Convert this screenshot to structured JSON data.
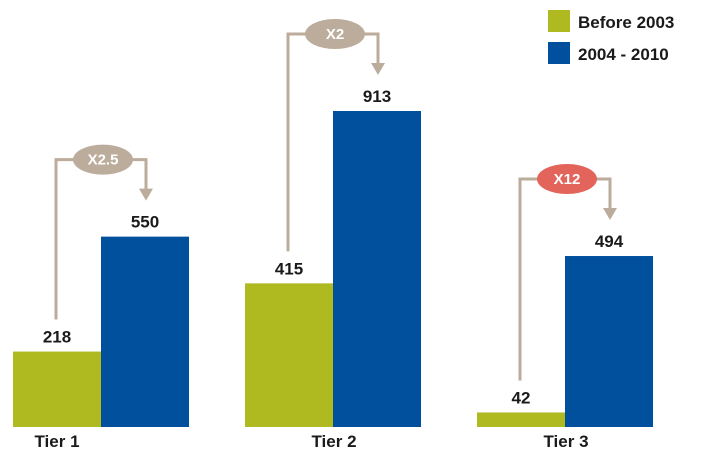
{
  "chart_data": {
    "type": "bar",
    "categories": [
      "Tier 1",
      "Tier 2",
      "Tier 3"
    ],
    "series": [
      {
        "name": "Before 2003",
        "color": "#afb920",
        "values": [
          218,
          415,
          42
        ]
      },
      {
        "name": "2004 - 2010",
        "color": "#00509e",
        "values": [
          550,
          913,
          494
        ]
      }
    ],
    "value_labels": [
      "218",
      "550",
      "415",
      "913",
      "42",
      "494"
    ],
    "annotations": [
      {
        "text": "X2.5",
        "color": "#bcac9b"
      },
      {
        "text": "X2",
        "color": "#bcac9b"
      },
      {
        "text": "X12",
        "color": "#e3645a"
      }
    ],
    "legend_position": "top-right",
    "ylim": [
      0,
      913
    ],
    "axes_visible": false,
    "grid": false
  }
}
